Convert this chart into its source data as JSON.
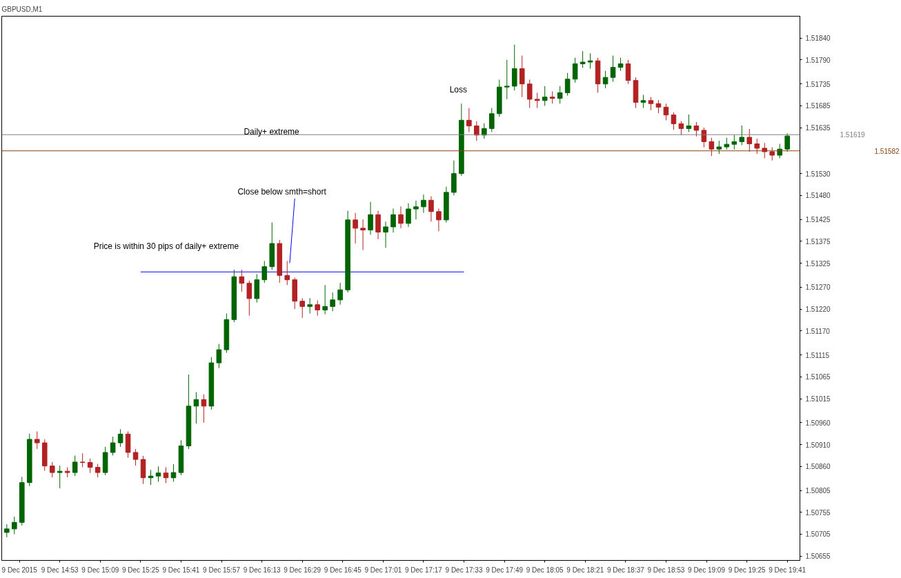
{
  "chart_data": {
    "type": "candlestick",
    "title": "GBPUSD,M1",
    "x": [
      "2015-12-09T14:32",
      "2015-12-09T14:35",
      "2015-12-09T14:38",
      "2015-12-09T14:41",
      "2015-12-09T14:44",
      "2015-12-09T14:47",
      "2015-12-09T14:50",
      "2015-12-09T14:53",
      "2015-12-09T14:56",
      "2015-12-09T14:59",
      "2015-12-09T15:02",
      "2015-12-09T15:05",
      "2015-12-09T15:08",
      "2015-12-09T15:11",
      "2015-12-09T15:14",
      "2015-12-09T15:17",
      "2015-12-09T15:20",
      "2015-12-09T15:23",
      "2015-12-09T15:26",
      "2015-12-09T15:29",
      "2015-12-09T15:32",
      "2015-12-09T15:35",
      "2015-12-09T15:38",
      "2015-12-09T15:41",
      "2015-12-09T15:44",
      "2015-12-09T15:47",
      "2015-12-09T15:50",
      "2015-12-09T15:53",
      "2015-12-09T15:56",
      "2015-12-09T15:59",
      "2015-12-09T16:02",
      "2015-12-09T16:05",
      "2015-12-09T16:08",
      "2015-12-09T16:11",
      "2015-12-09T16:14",
      "2015-12-09T16:17",
      "2015-12-09T16:20",
      "2015-12-09T16:23",
      "2015-12-09T16:26",
      "2015-12-09T16:29",
      "2015-12-09T16:32",
      "2015-12-09T16:35",
      "2015-12-09T16:38",
      "2015-12-09T16:41",
      "2015-12-09T16:44",
      "2015-12-09T16:47",
      "2015-12-09T16:50",
      "2015-12-09T16:53",
      "2015-12-09T16:56",
      "2015-12-09T16:59",
      "2015-12-09T17:02",
      "2015-12-09T17:05",
      "2015-12-09T17:08",
      "2015-12-09T17:11",
      "2015-12-09T17:14",
      "2015-12-09T17:17",
      "2015-12-09T17:20",
      "2015-12-09T17:23",
      "2015-12-09T17:26",
      "2015-12-09T17:29",
      "2015-12-09T17:32",
      "2015-12-09T17:35",
      "2015-12-09T17:38",
      "2015-12-09T17:41",
      "2015-12-09T17:44",
      "2015-12-09T17:47",
      "2015-12-09T17:50",
      "2015-12-09T17:53",
      "2015-12-09T17:56",
      "2015-12-09T17:59",
      "2015-12-09T18:02",
      "2015-12-09T18:05",
      "2015-12-09T18:08",
      "2015-12-09T18:11",
      "2015-12-09T18:14",
      "2015-12-09T18:17",
      "2015-12-09T18:20",
      "2015-12-09T18:23",
      "2015-12-09T18:26",
      "2015-12-09T18:29",
      "2015-12-09T18:32",
      "2015-12-09T18:35",
      "2015-12-09T18:38",
      "2015-12-09T18:41",
      "2015-12-09T18:44",
      "2015-12-09T18:47",
      "2015-12-09T18:50",
      "2015-12-09T18:53",
      "2015-12-09T18:56",
      "2015-12-09T18:59",
      "2015-12-09T19:02",
      "2015-12-09T19:05",
      "2015-12-09T19:08",
      "2015-12-09T19:11",
      "2015-12-09T19:14",
      "2015-12-09T19:17",
      "2015-12-09T19:20",
      "2015-12-09T19:23",
      "2015-12-09T19:26",
      "2015-12-09T19:29",
      "2015-12-09T19:32",
      "2015-12-09T19:35",
      "2015-12-09T19:38",
      "2015-12-09T19:41"
    ],
    "ohlc": [
      [
        1.50709,
        1.50728,
        1.50698,
        1.50717
      ],
      [
        1.50717,
        1.50745,
        1.50705,
        1.50732
      ],
      [
        1.50732,
        1.50836,
        1.50725,
        1.50823
      ],
      [
        1.50823,
        1.50935,
        1.50815,
        1.50922
      ],
      [
        1.50922,
        1.5094,
        1.509,
        1.50914
      ],
      [
        1.50914,
        1.50922,
        1.5085,
        1.50861
      ],
      [
        1.50861,
        1.5087,
        1.50835,
        1.50846
      ],
      [
        1.50846,
        1.50862,
        1.5081,
        1.50849
      ],
      [
        1.50849,
        1.50858,
        1.50835,
        1.50846
      ],
      [
        1.50846,
        1.50885,
        1.50838,
        1.5087
      ],
      [
        1.5087,
        1.5089,
        1.50858,
        1.50869
      ],
      [
        1.50869,
        1.50878,
        1.50845,
        1.50858
      ],
      [
        1.50858,
        1.50866,
        1.50835,
        1.50846
      ],
      [
        1.50846,
        1.50905,
        1.5084,
        1.50892
      ],
      [
        1.50892,
        1.50928,
        1.50885,
        1.50914
      ],
      [
        1.50914,
        1.50945,
        1.50905,
        1.50934
      ],
      [
        1.50934,
        1.5094,
        1.5088,
        1.50892
      ],
      [
        1.50892,
        1.509,
        1.50862,
        1.50876
      ],
      [
        1.50876,
        1.50884,
        1.5082,
        1.50834
      ],
      [
        1.50834,
        1.50852,
        1.50818,
        1.50838
      ],
      [
        1.50838,
        1.5086,
        1.50825,
        1.50845
      ],
      [
        1.50845,
        1.50858,
        1.50822,
        1.50834
      ],
      [
        1.50834,
        1.50865,
        1.50825,
        1.50846
      ],
      [
        1.50846,
        1.5092,
        1.5084,
        1.50907
      ],
      [
        1.50907,
        1.5107,
        1.509,
        1.50998
      ],
      [
        1.50998,
        1.5103,
        1.50958,
        1.51013
      ],
      [
        1.51013,
        1.51025,
        1.5096,
        1.50998
      ],
      [
        1.50998,
        1.5111,
        1.5099,
        1.51097
      ],
      [
        1.51097,
        1.5114,
        1.51085,
        1.51127
      ],
      [
        1.51127,
        1.5121,
        1.5112,
        1.51196
      ],
      [
        1.51196,
        1.5131,
        1.5119,
        1.51294
      ],
      [
        1.51294,
        1.5131,
        1.5126,
        1.51279
      ],
      [
        1.51279,
        1.51285,
        1.51205,
        1.51244
      ],
      [
        1.51244,
        1.513,
        1.51235,
        1.51287
      ],
      [
        1.51287,
        1.5133,
        1.5128,
        1.51317
      ],
      [
        1.51317,
        1.51418,
        1.5131,
        1.5137
      ],
      [
        1.5137,
        1.51378,
        1.5128,
        1.51297
      ],
      [
        1.51297,
        1.5133,
        1.51275,
        1.51287
      ],
      [
        1.51287,
        1.51292,
        1.5122,
        1.51238
      ],
      [
        1.51238,
        1.51245,
        1.512,
        1.51226
      ],
      [
        1.51226,
        1.51245,
        1.5121,
        1.5123
      ],
      [
        1.5123,
        1.5124,
        1.51205,
        1.51218
      ],
      [
        1.51218,
        1.51275,
        1.51208,
        1.51226
      ],
      [
        1.51226,
        1.51258,
        1.51215,
        1.51241
      ],
      [
        1.51241,
        1.5128,
        1.5123,
        1.51264
      ],
      [
        1.51264,
        1.51445,
        1.51258,
        1.51424
      ],
      [
        1.51424,
        1.5144,
        1.5137,
        1.51405
      ],
      [
        1.51405,
        1.51425,
        1.51355,
        1.51401
      ],
      [
        1.51401,
        1.51465,
        1.5139,
        1.51436
      ],
      [
        1.51436,
        1.51445,
        1.5138,
        1.51396
      ],
      [
        1.51396,
        1.5142,
        1.5136,
        1.51408
      ],
      [
        1.51408,
        1.5145,
        1.51395,
        1.51436
      ],
      [
        1.51436,
        1.51455,
        1.51405,
        1.51416
      ],
      [
        1.51416,
        1.51462,
        1.51408,
        1.51449
      ],
      [
        1.51449,
        1.51468,
        1.51425,
        1.51454
      ],
      [
        1.51454,
        1.51482,
        1.5144,
        1.51469
      ],
      [
        1.51469,
        1.51478,
        1.5142,
        1.51443
      ],
      [
        1.51443,
        1.5145,
        1.51398,
        1.51424
      ],
      [
        1.51424,
        1.515,
        1.51418,
        1.51487
      ],
      [
        1.51487,
        1.5156,
        1.5148,
        1.5153
      ],
      [
        1.5153,
        1.5169,
        1.51525,
        1.51652
      ],
      [
        1.51652,
        1.5168,
        1.51625,
        1.51639
      ],
      [
        1.51639,
        1.5165,
        1.51605,
        1.51618
      ],
      [
        1.51618,
        1.51645,
        1.5161,
        1.51633
      ],
      [
        1.51633,
        1.5168,
        1.51625,
        1.51667
      ],
      [
        1.51667,
        1.51745,
        1.5166,
        1.51728
      ],
      [
        1.51728,
        1.5179,
        1.517,
        1.5173
      ],
      [
        1.5173,
        1.51825,
        1.5172,
        1.5177
      ],
      [
        1.5177,
        1.518,
        1.51705,
        1.51735
      ],
      [
        1.51735,
        1.51745,
        1.5168,
        1.517
      ],
      [
        1.517,
        1.51715,
        1.5168,
        1.51697
      ],
      [
        1.51697,
        1.5173,
        1.51685,
        1.51705
      ],
      [
        1.51705,
        1.51718,
        1.5169,
        1.51702
      ],
      [
        1.51702,
        1.5173,
        1.5169,
        1.51715
      ],
      [
        1.51715,
        1.5176,
        1.51708,
        1.51746
      ],
      [
        1.51746,
        1.51795,
        1.51738,
        1.51781
      ],
      [
        1.51781,
        1.5181,
        1.51772,
        1.51785
      ],
      [
        1.51785,
        1.51805,
        1.5177,
        1.51788
      ],
      [
        1.51788,
        1.51795,
        1.51715,
        1.51735
      ],
      [
        1.51735,
        1.51765,
        1.51725,
        1.5175
      ],
      [
        1.5175,
        1.518,
        1.5174,
        1.51773
      ],
      [
        1.51773,
        1.51795,
        1.51765,
        1.51781
      ],
      [
        1.51781,
        1.5179,
        1.51735,
        1.51743
      ],
      [
        1.51743,
        1.5175,
        1.5168,
        1.51693
      ],
      [
        1.51693,
        1.5171,
        1.5168,
        1.51697
      ],
      [
        1.51697,
        1.51705,
        1.51675,
        1.5169
      ],
      [
        1.5169,
        1.51698,
        1.51668,
        1.51682
      ],
      [
        1.51682,
        1.5169,
        1.51652,
        1.51664
      ],
      [
        1.51664,
        1.5167,
        1.5163,
        1.51644
      ],
      [
        1.51644,
        1.5165,
        1.51618,
        1.51633
      ],
      [
        1.51633,
        1.51665,
        1.51625,
        1.51639
      ],
      [
        1.51639,
        1.51648,
        1.51615,
        1.51629
      ],
      [
        1.51629,
        1.51635,
        1.5159,
        1.51603
      ],
      [
        1.51603,
        1.51612,
        1.5157,
        1.51586
      ],
      [
        1.51586,
        1.51605,
        1.51575,
        1.51591
      ],
      [
        1.51591,
        1.51612,
        1.51585,
        1.51597
      ],
      [
        1.51597,
        1.51618,
        1.51585,
        1.51603
      ],
      [
        1.51603,
        1.5164,
        1.51595,
        1.51613
      ],
      [
        1.51613,
        1.51632,
        1.5158,
        1.51598
      ],
      [
        1.51598,
        1.5161,
        1.51575,
        1.51588
      ],
      [
        1.51588,
        1.516,
        1.51565,
        1.5158
      ],
      [
        1.5158,
        1.5159,
        1.5156,
        1.51572
      ],
      [
        1.51572,
        1.51598,
        1.51565,
        1.51586
      ],
      [
        1.51586,
        1.51622,
        1.5158,
        1.51616
      ]
    ],
    "colors": [
      "#006400",
      "#006400",
      "#006400",
      "#006400",
      "#b22222",
      "#b22222",
      "#b22222",
      "#006400",
      "#b22222",
      "#006400",
      "#b22222",
      "#b22222",
      "#b22222",
      "#006400",
      "#006400",
      "#006400",
      "#b22222",
      "#b22222",
      "#b22222",
      "#006400",
      "#006400",
      "#b22222",
      "#006400",
      "#006400",
      "#006400",
      "#006400",
      "#b22222",
      "#006400",
      "#006400",
      "#006400",
      "#006400",
      "#b22222",
      "#b22222",
      "#006400",
      "#006400",
      "#006400",
      "#b22222",
      "#b22222",
      "#b22222",
      "#b22222",
      "#006400",
      "#b22222",
      "#006400",
      "#006400",
      "#006400",
      "#006400",
      "#b22222",
      "#b22222",
      "#006400",
      "#b22222",
      "#006400",
      "#006400",
      "#b22222",
      "#006400",
      "#006400",
      "#006400",
      "#b22222",
      "#b22222",
      "#006400",
      "#006400",
      "#006400",
      "#b22222",
      "#b22222",
      "#006400",
      "#006400",
      "#006400",
      "#006400",
      "#006400",
      "#b22222",
      "#b22222",
      "#b22222",
      "#006400",
      "#b22222",
      "#006400",
      "#006400",
      "#006400",
      "#006400",
      "#006400",
      "#b22222",
      "#006400",
      "#006400",
      "#006400",
      "#b22222",
      "#b22222",
      "#006400",
      "#b22222",
      "#b22222",
      "#b22222",
      "#b22222",
      "#b22222",
      "#006400",
      "#b22222",
      "#b22222",
      "#b22222",
      "#006400",
      "#006400",
      "#006400",
      "#006400",
      "#b22222",
      "#b22222",
      "#b22222",
      "#b22222",
      "#006400",
      "#006400"
    ],
    "series": [
      {
        "type": "line",
        "color": "#0000ff",
        "x": [
          "2015-12-09T15:25",
          "2015-12-09T17:33"
        ],
        "values": [
          1.51305,
          1.51305
        ]
      },
      {
        "type": "line",
        "color": "#0000ff",
        "x": [
          "2015-12-09T16:24",
          "2015-12-09T16:26"
        ],
        "values": [
          1.51325,
          1.51473
        ]
      }
    ],
    "ref_lines": [
      {
        "axis": "y",
        "value": 1.51619,
        "label": "1.51619",
        "color": "#808080"
      },
      {
        "axis": "y",
        "value": 1.51582,
        "label": "1.51582",
        "color": "#8b4513"
      }
    ],
    "annotations": [
      "Daily+ extreme",
      "Close below smth=short",
      "Price is within 30 pips of daily+ extreme",
      "Loss"
    ],
    "xlim": [
      "2015-12-09T14:30",
      "2015-12-09T19:46"
    ],
    "xticks": [
      {
        "value": "2015-12-09T14:37",
        "label": "9 Dec 2015"
      },
      {
        "value": "2015-12-09T14:53",
        "label": "9 Dec 14:53"
      },
      {
        "value": "2015-12-09T15:09",
        "label": "9 Dec 15:09"
      },
      {
        "value": "2015-12-09T15:25",
        "label": "9 Dec 15:25"
      },
      {
        "value": "2015-12-09T15:41",
        "label": "9 Dec 15:41"
      },
      {
        "value": "2015-12-09T15:57",
        "label": "9 Dec 15:57"
      },
      {
        "value": "2015-12-09T16:13",
        "label": "9 Dec 16:13"
      },
      {
        "value": "2015-12-09T16:29",
        "label": "9 Dec 16:29"
      },
      {
        "value": "2015-12-09T16:45",
        "label": "9 Dec 16:45"
      },
      {
        "value": "2015-12-09T17:01",
        "label": "9 Dec 17:01"
      },
      {
        "value": "2015-12-09T17:17",
        "label": "9 Dec 17:17"
      },
      {
        "value": "2015-12-09T17:33",
        "label": "9 Dec 17:33"
      },
      {
        "value": "2015-12-09T17:49",
        "label": "9 Dec 17:49"
      },
      {
        "value": "2015-12-09T18:05",
        "label": "9 Dec 18:05"
      },
      {
        "value": "2015-12-09T18:21",
        "label": "9 Dec 18:21"
      },
      {
        "value": "2015-12-09T18:37",
        "label": "9 Dec 18:37"
      },
      {
        "value": "2015-12-09T18:53",
        "label": "9 Dec 18:53"
      },
      {
        "value": "2015-12-09T19:09",
        "label": "9 Dec 19:09"
      },
      {
        "value": "2015-12-09T19:25",
        "label": "9 Dec 19:25"
      },
      {
        "value": "2015-12-09T19:41",
        "label": "9 Dec 19:41"
      }
    ],
    "ylim": [
      1.50645,
      1.5189
    ],
    "yticks": [
      {
        "value": 1.5184,
        "label": "1.51840"
      },
      {
        "value": 1.5179,
        "label": "1.51790"
      },
      {
        "value": 1.51735,
        "label": "1.51735"
      },
      {
        "value": 1.51685,
        "label": "1.51685"
      },
      {
        "value": 1.51635,
        "label": "1.51635"
      },
      {
        "value": 1.5153,
        "label": "1.51530"
      },
      {
        "value": 1.5148,
        "label": "1.51480"
      },
      {
        "value": 1.51425,
        "label": "1.51425"
      },
      {
        "value": 1.51375,
        "label": "1.51375"
      },
      {
        "value": 1.51325,
        "label": "1.51325"
      },
      {
        "value": 1.5127,
        "label": "1.51270"
      },
      {
        "value": 1.5122,
        "label": "1.51220"
      },
      {
        "value": 1.5117,
        "label": "1.51170"
      },
      {
        "value": 1.51115,
        "label": "1.51115"
      },
      {
        "value": 1.51065,
        "label": "1.51065"
      },
      {
        "value": 1.51015,
        "label": "1.51015"
      },
      {
        "value": 1.5096,
        "label": "1.50960"
      },
      {
        "value": 1.5091,
        "label": "1.50910"
      },
      {
        "value": 1.5086,
        "label": "1.50860"
      },
      {
        "value": 1.50805,
        "label": "1.50805"
      },
      {
        "value": 1.50755,
        "label": "1.50755"
      },
      {
        "value": 1.50705,
        "label": "1.50705"
      },
      {
        "value": 1.50655,
        "label": "1.50655"
      }
    ]
  }
}
